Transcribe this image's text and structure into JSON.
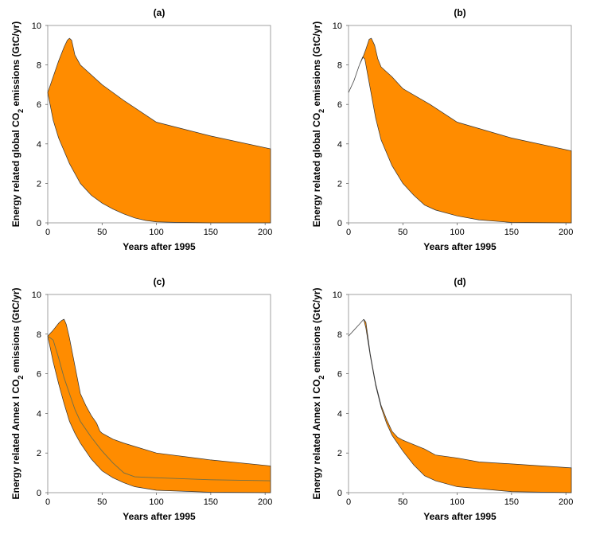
{
  "colors": {
    "band": "#ff8c00",
    "frame": "#8a8a8a",
    "line": "#6f6f4a"
  },
  "chart_data": [
    {
      "type": "area",
      "title": "(a)",
      "xlabel": "Years after 1995",
      "ylabel": "Energy related global CO₂ emissions (GtC/yr)",
      "xlim": [
        0,
        205
      ],
      "ylim": [
        0,
        10
      ],
      "xticks": [
        0,
        50,
        100,
        150,
        200
      ],
      "yticks": [
        0,
        2,
        4,
        6,
        8,
        10
      ],
      "series": [
        {
          "name": "upper",
          "x": [
            0,
            5,
            10,
            15,
            18,
            20,
            22,
            25,
            30,
            40,
            50,
            70,
            100,
            150,
            205
          ],
          "y": [
            6.6,
            7.4,
            8.2,
            8.9,
            9.25,
            9.35,
            9.25,
            8.5,
            8.0,
            7.5,
            7.0,
            6.2,
            5.1,
            4.4,
            3.75
          ]
        },
        {
          "name": "lower",
          "x": [
            0,
            5,
            10,
            20,
            30,
            40,
            50,
            60,
            70,
            80,
            90,
            100,
            120,
            150,
            205
          ],
          "y": [
            6.6,
            5.2,
            4.3,
            3.0,
            2.0,
            1.4,
            1.0,
            0.7,
            0.45,
            0.25,
            0.12,
            0.05,
            0.02,
            0.0,
            0.0
          ]
        }
      ]
    },
    {
      "type": "area",
      "title": "(b)",
      "xlabel": "Years after 1995",
      "ylabel": "Energy related global CO₂ emissions (GtC/yr)",
      "xlim": [
        0,
        205
      ],
      "ylim": [
        0,
        10
      ],
      "xticks": [
        0,
        50,
        100,
        150,
        200
      ],
      "yticks": [
        0,
        2,
        4,
        6,
        8,
        10
      ],
      "pre_band_line": {
        "x": [
          0,
          5,
          10
        ],
        "y": [
          6.6,
          7.2,
          8.0
        ]
      },
      "series": [
        {
          "name": "upper",
          "x": [
            10,
            13,
            16,
            19,
            21,
            24,
            27,
            30,
            40,
            50,
            75,
            100,
            150,
            205
          ],
          "y": [
            8.0,
            8.35,
            8.8,
            9.3,
            9.35,
            9.0,
            8.3,
            7.9,
            7.4,
            6.8,
            6.0,
            5.1,
            4.3,
            3.65
          ]
        },
        {
          "name": "lower",
          "x": [
            10,
            13,
            15,
            20,
            25,
            30,
            40,
            50,
            60,
            70,
            80,
            100,
            120,
            150,
            205
          ],
          "y": [
            8.0,
            8.4,
            8.3,
            6.8,
            5.3,
            4.2,
            2.9,
            2.0,
            1.4,
            0.9,
            0.65,
            0.35,
            0.15,
            0.02,
            0.0
          ]
        }
      ]
    },
    {
      "type": "area",
      "title": "(c)",
      "xlabel": "Years after 1995",
      "ylabel": "Energy related Annex I CO₂ emissions (GtC/yr)",
      "xlim": [
        0,
        205
      ],
      "ylim": [
        0,
        10
      ],
      "xticks": [
        0,
        50,
        100,
        150,
        200
      ],
      "yticks": [
        0,
        2,
        4,
        6,
        8,
        10
      ],
      "series": [
        {
          "name": "upper",
          "x": [
            0,
            5,
            10,
            13,
            15,
            17,
            20,
            25,
            30,
            35,
            40,
            45,
            48,
            50,
            60,
            70,
            100,
            150,
            205
          ],
          "y": [
            7.9,
            8.2,
            8.55,
            8.7,
            8.75,
            8.5,
            7.8,
            6.4,
            5.0,
            4.4,
            3.9,
            3.5,
            3.1,
            3.0,
            2.7,
            2.5,
            2.0,
            1.65,
            1.35
          ]
        },
        {
          "name": "lower",
          "x": [
            0,
            5,
            10,
            15,
            20,
            25,
            30,
            40,
            50,
            60,
            70,
            80,
            100,
            150,
            205
          ],
          "y": [
            7.9,
            6.6,
            5.5,
            4.5,
            3.6,
            3.0,
            2.5,
            1.7,
            1.1,
            0.75,
            0.5,
            0.3,
            0.12,
            0.02,
            0.0
          ]
        },
        {
          "name": "central",
          "x": [
            0,
            5,
            10,
            15,
            20,
            25,
            30,
            40,
            50,
            60,
            70,
            80,
            100,
            150,
            205
          ],
          "y": [
            7.9,
            7.7,
            6.8,
            5.8,
            5.0,
            4.2,
            3.6,
            2.8,
            2.1,
            1.5,
            1.0,
            0.8,
            0.75,
            0.65,
            0.6
          ]
        }
      ]
    },
    {
      "type": "area",
      "title": "(d)",
      "xlabel": "Years after 1995",
      "ylabel": "Energy related Annex I CO₂ emissions (GtC/yr)",
      "xlim": [
        0,
        205
      ],
      "ylim": [
        0,
        10
      ],
      "xticks": [
        0,
        50,
        100,
        150,
        200
      ],
      "yticks": [
        0,
        2,
        4,
        6,
        8,
        10
      ],
      "pre_band_line": {
        "x": [
          0,
          5,
          10,
          14
        ],
        "y": [
          7.9,
          8.2,
          8.5,
          8.75
        ]
      },
      "series": [
        {
          "name": "upper",
          "x": [
            14,
            16,
            20,
            25,
            30,
            35,
            40,
            45,
            50,
            70,
            80,
            100,
            120,
            150,
            205
          ],
          "y": [
            8.75,
            8.6,
            7.0,
            5.5,
            4.4,
            3.7,
            3.1,
            2.8,
            2.65,
            2.2,
            1.9,
            1.75,
            1.55,
            1.45,
            1.25
          ]
        },
        {
          "name": "lower",
          "x": [
            14,
            16,
            20,
            25,
            30,
            35,
            40,
            45,
            50,
            60,
            70,
            80,
            100,
            150,
            205
          ],
          "y": [
            8.75,
            8.3,
            6.9,
            5.4,
            4.3,
            3.5,
            2.9,
            2.5,
            2.1,
            1.4,
            0.85,
            0.6,
            0.3,
            0.05,
            0.0
          ]
        }
      ]
    }
  ]
}
